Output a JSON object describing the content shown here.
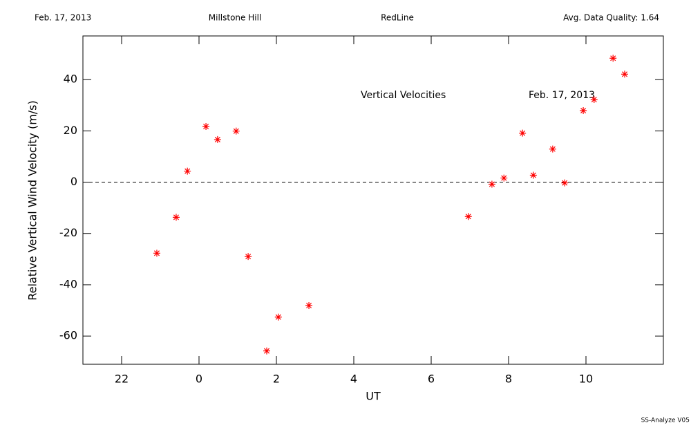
{
  "header": {
    "date": "Feb. 17, 2013",
    "site": "Millstone Hill",
    "instrument": "RedLine",
    "quality": "Avg. Data Quality: 1.64"
  },
  "footer": "SS-Analyze V05",
  "chart_data": {
    "type": "scatter",
    "xlabel": "UT",
    "ylabel": "Relative Vertical Wind Velocity (m/s)",
    "annotations": [
      "Vertical Velocities",
      "Feb. 17, 2013"
    ],
    "color": "#ff0000",
    "hline": 0,
    "xlim": [
      21,
      36
    ],
    "ylim": [
      -71,
      57
    ],
    "xticks": [
      22,
      {
        "value": 24,
        "label": "0"
      },
      {
        "value": 26,
        "label": "2"
      },
      {
        "value": 28,
        "label": "4"
      },
      {
        "value": 30,
        "label": "6"
      },
      {
        "value": 32,
        "label": "8"
      },
      {
        "value": 34,
        "label": "10"
      }
    ],
    "yticks": [
      -60,
      -40,
      -20,
      0,
      20,
      40
    ],
    "x": [
      22.91,
      23.41,
      23.7,
      24.18,
      24.48,
      24.96,
      25.27,
      25.75,
      26.05,
      26.84,
      30.96,
      31.57,
      31.88,
      32.36,
      32.64,
      33.14,
      33.45,
      33.93,
      34.21,
      34.7,
      35.0
    ],
    "values": [
      -27.7,
      -13.7,
      4.3,
      21.7,
      16.6,
      19.9,
      -29.0,
      -65.8,
      -52.6,
      -48.1,
      -13.4,
      -0.8,
      1.6,
      19.1,
      2.7,
      12.9,
      -0.3,
      27.9,
      32.2,
      48.3,
      42.1
    ]
  }
}
